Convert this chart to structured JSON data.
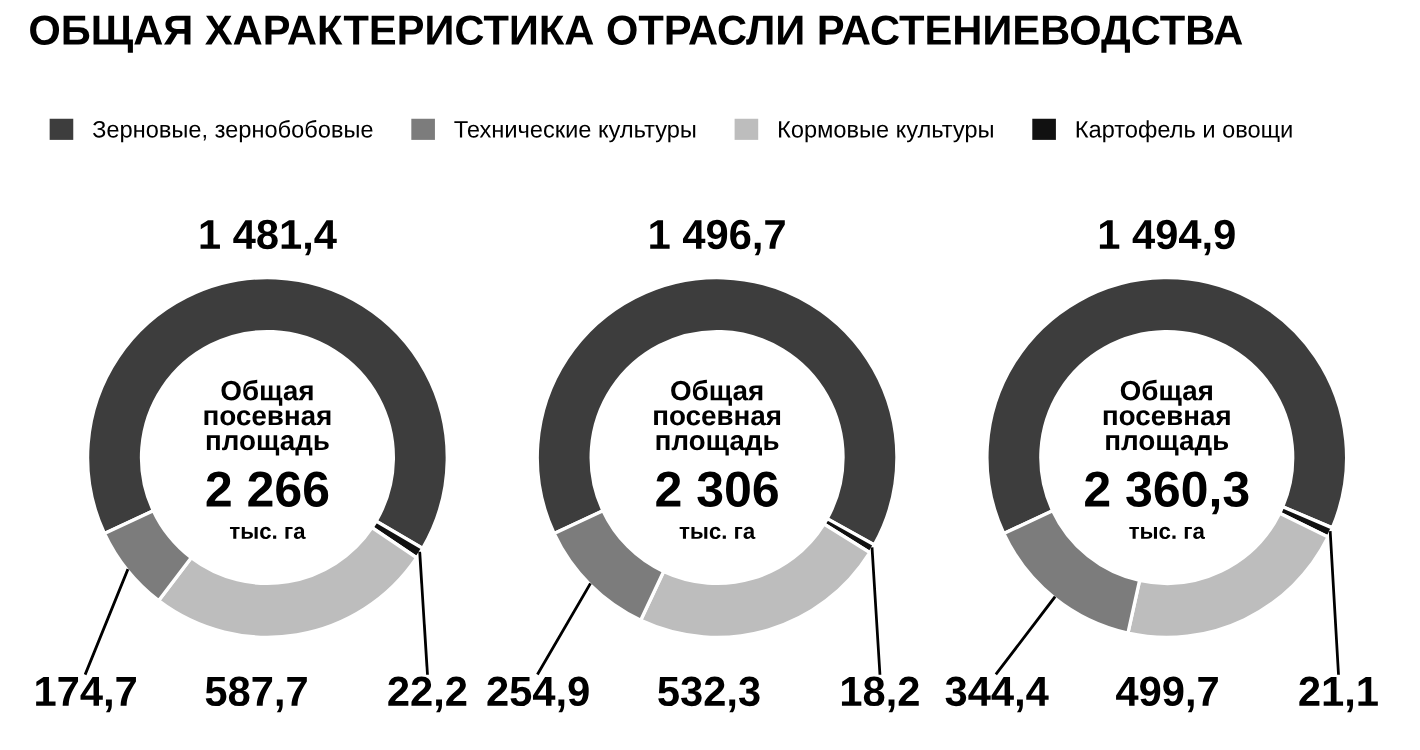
{
  "chart_data": [
    {
      "type": "donut",
      "title": "ОБЩАЯ ХАРАКТЕРИСТИКА ОТРАСЛИ РАСТЕНИЕВОДСТВА",
      "legend": "top",
      "categories": [
        "Зерновые, зернобобовые",
        "Картофель и овощи",
        "Кормовые культуры",
        "Технические культуры"
      ],
      "values": [
        1481.4,
        22.2,
        587.7,
        174.7
      ],
      "value_labels": [
        "1 481,4",
        "22,2",
        "587,7",
        "174,7"
      ],
      "colors": [
        "#3d3d3d",
        "#111111",
        "#bdbdbd",
        "#7c7c7c"
      ],
      "annotations": [
        "Общая\nпосевная\nплощадь",
        "2 266",
        "тыс. га"
      ]
    },
    {
      "type": "donut",
      "categories": [
        null,
        null,
        null,
        null
      ],
      "values": [
        1496.7,
        18.2,
        532.3,
        254.9
      ],
      "value_labels": [
        "1 496,7",
        "18,2",
        "532,3",
        "254,9"
      ],
      "colors": [
        "#3d3d3d",
        "#111111",
        "#bdbdbd",
        "#7c7c7c"
      ],
      "annotations": [
        "Общая\nпосевная\nплощадь",
        "2 306",
        "тыс. га"
      ]
    },
    {
      "type": "donut",
      "categories": [
        null,
        null,
        null,
        null
      ],
      "values": [
        1494.9,
        21.1,
        499.7,
        344.4
      ],
      "value_labels": [
        "1 494,9",
        "21,1",
        "499,7",
        "344,4"
      ],
      "colors": [
        "#3d3d3d",
        "#111111",
        "#bdbdbd",
        "#7c7c7c"
      ],
      "annotations": [
        "Общая\nпосевная\nплощадь",
        "2 360,3",
        "тыс. га"
      ]
    }
  ]
}
